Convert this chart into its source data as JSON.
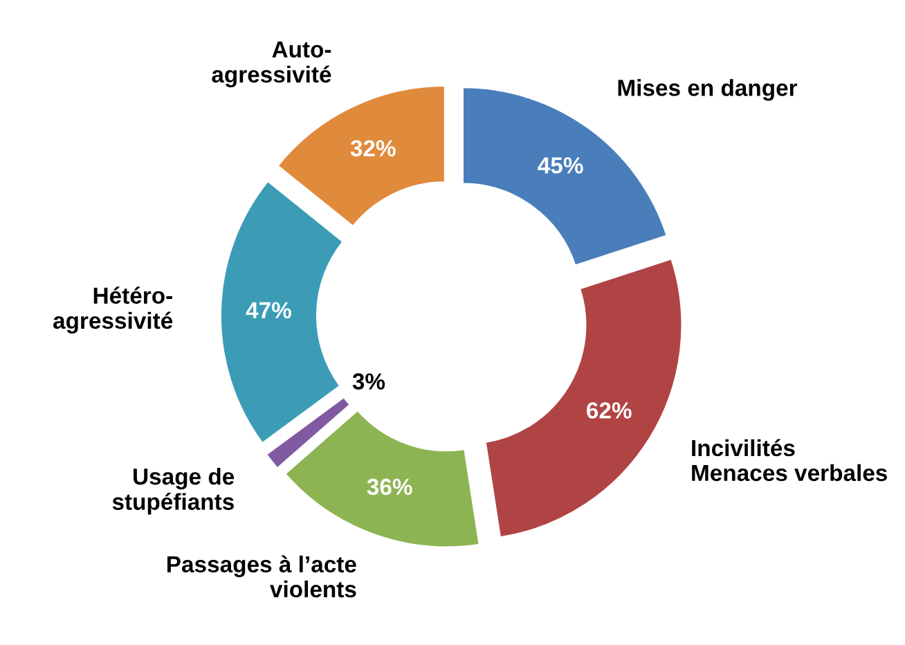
{
  "chart_data": {
    "type": "donut",
    "categories": [
      "Mises en danger",
      "Incivilités\nMenaces verbales",
      "Passages à l’acte\nviolents",
      "Usage de\nstupéfiants",
      "Hétéro-\nagressivité",
      "Auto-\nagressivité"
    ],
    "values": [
      45,
      62,
      36,
      3,
      47,
      32
    ],
    "value_labels": [
      "45%",
      "62%",
      "36%",
      "3%",
      "47%",
      "32%"
    ],
    "colors": [
      "#4a7ebb",
      "#b04444",
      "#8db452",
      "#7f5aa2",
      "#3c9cb6",
      "#e08a3c"
    ],
    "legend": false
  }
}
